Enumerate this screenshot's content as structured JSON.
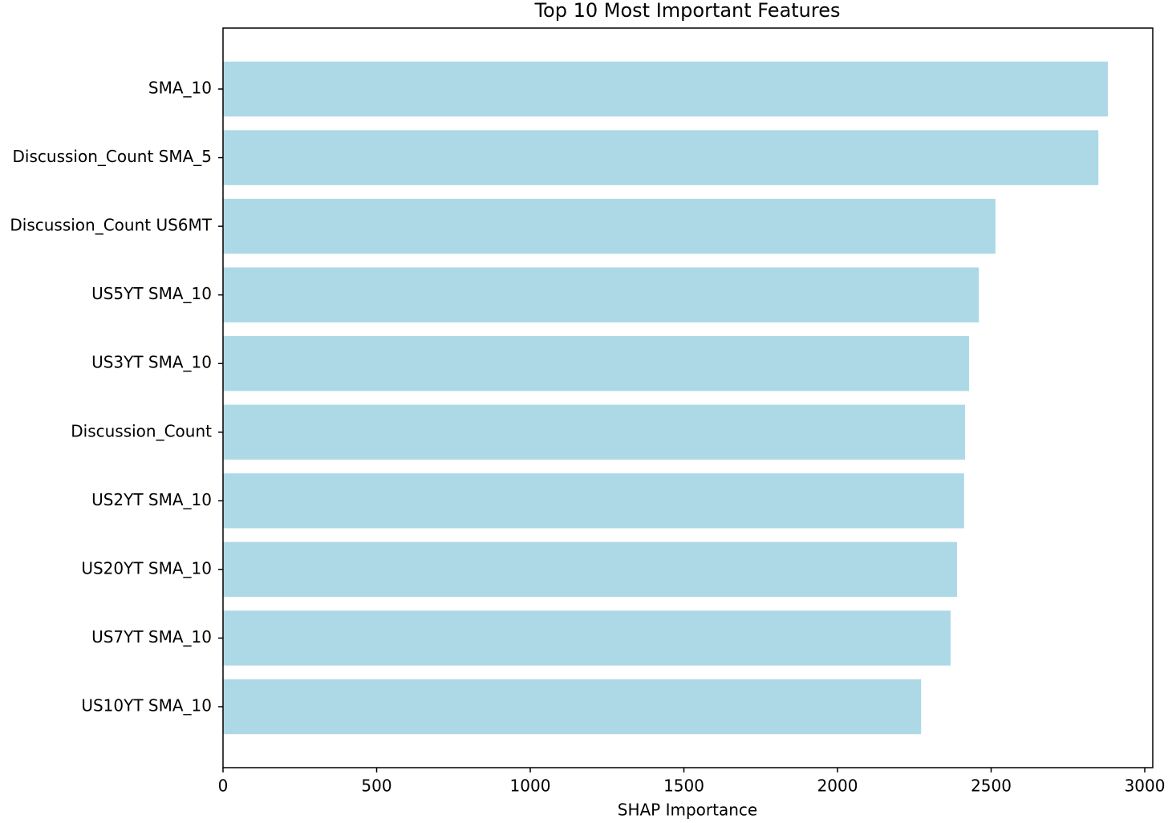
{
  "chart_data": {
    "type": "barh",
    "title": "Top 10 Most Important Features",
    "x_label": "SHAP Importance",
    "categories": [
      "SMA_10",
      "Discussion_Count SMA_5",
      "Discussion_Count US6MT",
      "US5YT SMA_10",
      "US3YT SMA_10",
      "Discussion_Count",
      "US2YT SMA_10",
      "US20YT SMA_10",
      "US7YT SMA_10",
      "US10YT SMA_10"
    ],
    "values": [
      2880,
      2849,
      2514,
      2460,
      2428,
      2415,
      2412,
      2389,
      2368,
      2272
    ],
    "color": "#add8e6",
    "xlim": [
      0,
      3026
    ],
    "xticks": [
      0,
      500,
      1000,
      1500,
      2000,
      2500,
      3000
    ]
  }
}
